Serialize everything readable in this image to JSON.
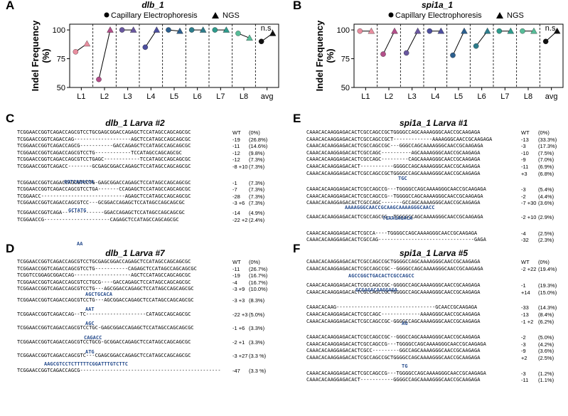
{
  "panels": {
    "A": {
      "label": "A",
      "title": "dlb_1"
    },
    "B": {
      "label": "B",
      "title": "spi1a_1"
    },
    "C": {
      "label": "C",
      "title": "dlb_1 Larva #2"
    },
    "D": {
      "label": "D",
      "title": "dlb_1 Larva #7"
    },
    "E": {
      "label": "E",
      "title": "spi1a_1 Larva #1"
    },
    "F": {
      "label": "F",
      "title": "spi1a_1 Larva #5"
    }
  },
  "legend": {
    "ce": "Capillary Electrophoresis",
    "ngs": "NGS"
  },
  "chart_data": [
    {
      "type": "scatter",
      "title": "dlb_1",
      "ylabel": "Indel Frequency (%)",
      "categories": [
        "L1",
        "L2",
        "L3",
        "L4",
        "L5",
        "L6",
        "L7",
        "L8",
        "avg"
      ],
      "yticks": [
        "50",
        "75",
        "100"
      ],
      "ylim": [
        50,
        105
      ],
      "annotation": "n.s.",
      "series": [
        {
          "name": "Capillary Electrophoresis",
          "values": [
            81,
            57,
            100,
            85,
            100,
            100,
            100,
            97,
            90
          ]
        },
        {
          "name": "NGS",
          "values": [
            88,
            100,
            100,
            100,
            99,
            100,
            100,
            93,
            97
          ]
        }
      ],
      "colors": [
        "#e88e9f",
        "#b34f8a",
        "#6a58a0",
        "#4d4f9e",
        "#2c5f8e",
        "#2e7d8c",
        "#2e9b8c",
        "#58bd99",
        "#111111"
      ]
    },
    {
      "type": "scatter",
      "title": "spi1a_1",
      "ylabel": "Indel Frequency (%)",
      "categories": [
        "L1",
        "L2",
        "L3",
        "L4",
        "L5",
        "L6",
        "L7",
        "L8",
        "avg"
      ],
      "yticks": [
        "50",
        "75",
        "100"
      ],
      "ylim": [
        50,
        105
      ],
      "annotation": "n.s.",
      "series": [
        {
          "name": "Capillary Electrophoresis",
          "values": [
            99,
            79,
            80,
            99,
            78,
            86,
            99,
            99,
            90
          ]
        },
        {
          "name": "NGS",
          "values": [
            99,
            99,
            99,
            99,
            99,
            99,
            99,
            99,
            99
          ]
        }
      ],
      "colors": [
        "#e88e9f",
        "#b34f8a",
        "#6a58a0",
        "#4d4f9e",
        "#2c5f8e",
        "#2e7d8c",
        "#2e9b8c",
        "#58bd99",
        "#111111"
      ]
    }
  ],
  "seq": {
    "C": [
      {
        "s": "TCGGAACCGGTCAGACCAGCGTCCTGCGAGCGGACCAGAGCTCCATAGCCAGCAGCGC",
        "n": "WT",
        "p": "(0%)"
      },
      {
        "s": "TCGGAACCGGTCAGACCAG-------------------AGCTCCATAGCCAGCAGCGC",
        "n": "-19",
        "p": "(26.8%)"
      },
      {
        "s": "TCGGAACCGGTCAGACCAGCG-----------GACCAGAGCTCCATAGCCAGCAGCGC",
        "n": "-11",
        "p": "(14.6%)"
      },
      {
        "s": "TCGGAACCGGTCAGACCAGCGTCCTG------------TCCATAGCCAGCAGCGC",
        "n": "-12",
        "p": "(9.8%)"
      },
      {
        "s": "TCGGAACCGGTCAGACCAGCGTCCTGAGC------------TCCATAGCCAGCAGCGC",
        "n": "-12",
        "p": "(7.3%)"
      },
      {
        "s": "TCGGAACCGGTCAGACC--------GCGAGCGGACCAGAGCTCCATAGCCAGCAGCGC",
        "n": "-8 +10",
        "p": "(7.3%)"
      },
      {
        "s": "TCGGAACCGGTCAGACCAGCGTCCTG-GAGCGGACCAGAGCTCCATAGCCAGCAGCGC",
        "n": "-1",
        "p": "(7.3%)"
      },
      {
        "s": "TCGGAACCGGTCAGACCAGCGTCCTGA-------CCAGAGCTCCATAGCCAGCAGCGC",
        "n": "-7",
        "p": "(7.3%)"
      },
      {
        "s": "TCGGAACC----------------------------AGAGCTCCATAGCCAGCAGCGC",
        "n": "-28",
        "p": "(7.3%)"
      },
      {
        "s": "TCGGAACCGGTCAGACCAGCGTCC---GCGGACCAGAGCTCCATAGCCAGCAGCGC",
        "n": "-3 +6",
        "p": "(7.3%)"
      },
      {
        "s": "TCGGAACCGGTCAGA--------------GGACCAGAGCTCCATAGCCAGCAGCGC",
        "n": "-14",
        "p": "(4.9%)"
      },
      {
        "s": "TCGGAACCG----------------------CAGAGCTCCATAGCCAGCAGCGC",
        "n": "-22 +2",
        "p": "(2.4%)"
      }
    ],
    "Cins": [
      "GGTCAGACCA",
      "GCTATG",
      "AA"
    ],
    "D": [
      {
        "s": "TCGGAACCGGTCAGACCAGCGTCCTGCGAGCGGACCAGAGCTCCATAGCCAGCAGCGC",
        "n": "WT",
        "p": "(0%)"
      },
      {
        "s": "TCGGAACCGGTCAGACCAGCGTCCTG-----------CAGAGCTCCATAGCCAGCAGCGC",
        "n": "-11",
        "p": "(26.7%)"
      },
      {
        "s": "TCGGTCCGGAGCGGACCAG-------------------AGCTCCATAGCCAGCAGCGC",
        "n": "-19",
        "p": "(16.7%)"
      },
      {
        "s": "TCGGAACCGGTCAGACCAGCGTCCTGCG----GACCAGAGCTCCATAGCCAGCAGCGC",
        "n": "-4",
        "p": "(16.7%)"
      },
      {
        "s": "TCGGAACCGGTCAGACCAGCGTCCTG---AGCGGACCAGAGCTCCATAGCCAGCAGCGC",
        "n": "-3 +9",
        "p": "(10.0%)"
      },
      {
        "s": "TCGGAACCGGTCAGACCAGCGTCCTG---AGCGGACCAGAGCTCCATAGCCAGCAGCGC",
        "n": "-3 +3",
        "p": "(8.3%)"
      },
      {
        "s": "TCGGAACCGGTCAGACCAG--TC--------------------CATAGCCAGCAGCGC",
        "n": "-22 +3",
        "p": "(5.0%)"
      },
      {
        "s": "TCGGAACCGGTCAGACCAGCGTCCTGC-GAGCGGACCAGAGCTCCATAGCCAGCAGCGC",
        "n": "-1 +6",
        "p": "(3.3%)"
      },
      {
        "s": "TCGGAACCGGTCAGACCAGCGTCCTGCG-GCGGACCAGAGCTCCATAGCCAGCAGCGC",
        "n": "-2 +1",
        "p": "(3.3%)"
      },
      {
        "s": "TCGGAACCGGTCAGACCAGCGTC---CGAGCGGACCAGAGCTCCATAGCCAGCAGCGC",
        "n": "-3 +27",
        "p": "(3.3 %)"
      },
      {
        "s": "TCGGAACCGGTCAGACCAGCG-----------------------------------------------",
        "n": "-47",
        "p": "(3.3 %)"
      }
    ],
    "Dins": [
      "AGCTGCACA",
      "AAT",
      "AGC",
      "CAGACC",
      "ATG",
      "AAGCGTCCTCTTTTTCGGATTTGTCTTC"
    ],
    "E": [
      {
        "s": "CAAACACAAGGAGACACTCGCCAGCCGCTGGGGCCAGCAAAAGGGCAACCGCAAGAGA",
        "n": "WT",
        "p": "(0%)"
      },
      {
        "s": "CAAACACAAGGAGACACTCGCCAGCCGCT-------------AAAAGGGCAACCGCAAGAGA",
        "n": "-13",
        "p": "(33.3%)"
      },
      {
        "s": "CAAACACAAGGAGACACTCGCCAGCCGC---GGGCCAGCAAAAGGGCAACCGCAAGAGA",
        "n": "-3",
        "p": "(17.3%)"
      },
      {
        "s": "CAAACACAAGGAGACACTCGCCAGC----------AGCAAAAGGGCAACCGCAAGAGA",
        "n": "-10",
        "p": "(7.5%)"
      },
      {
        "s": "CAAACACAAGGAGACACTCGCCAGC---------CAGCAAAAGGGCAACCGCAAGAGA",
        "n": "-9",
        "p": "(7.0%)"
      },
      {
        "s": "CAAACACAAGGAGACACT-----------GGGGCCAGCAAAAGGGCAACCGCAAGAGA",
        "n": "-11",
        "p": "(6.9%)"
      },
      {
        "s": "CAAACACAAGGAGACACTCGCCAGCCGCTGGGGCCAGCAAAAGGGCAACCGCAAGAGA",
        "n": "+3",
        "p": "(6.8%)"
      },
      {
        "s": "CAAACACAAGGAGACACTCGCCAGCCG---TGGGGCCAGCAAAAGGGCAACCGCAAGAGA",
        "n": "-3",
        "p": "(5.4%)"
      },
      {
        "s": "CAAACACAAGGAGACACTCGCCAGCCG--TGGGGCCAGCAAAAGGGCAACCGCAAGAGA",
        "n": "-2",
        "p": "(4.4%)"
      },
      {
        "s": "CAAACACAAGGAGACACTCGCCAGC-------GCCAGCAAAAGGGCAACCGCAAGAGA",
        "n": "-7 +30",
        "p": "(3.6%)"
      },
      {
        "s": "CAAACACAAGGAGACACTCGCCAGCCG--TGGGGCCAGCAAAAGGGCAACCGCAAGAGA",
        "n": "-2 +10",
        "p": "(2.9%)"
      },
      {
        "s": "CAAACACAAGGAGACACTCGCCA----TGGGGCCAGCAAAAGGGCAACCGCAAGAGA",
        "n": "-4",
        "p": "(2.5%)"
      },
      {
        "s": "CAAACACAAGGAGACACTCGCCAG--------------------------------GAGA",
        "n": "-32",
        "p": "(2.3%)"
      }
    ],
    "Eins": [
      "TGC",
      "AAAAGGGCAACCGCAAGCAAAAGGGCAACC",
      "TGAAGAGACA"
    ],
    "F": [
      {
        "s": "CAAACACAAGGAGACACTCGCCAGCCGCTGGGGCCAGCAAAAGGGCAACCGCAAGAGA",
        "n": "WT",
        "p": "(0%)"
      },
      {
        "s": "CAAACACAAGGAGACACTCGCCAGCCGC--GGGGCCAGCAAAAGGGCAACCGCAAGAGA",
        "n": "-2 +22",
        "p": "(19.4%)"
      },
      {
        "s": "CAAACACAAGGAGACACTCGCCAGCCGC-GGGGCCAGCAAAAGGGCAACCGCAAGAGA",
        "n": "-1",
        "p": "(19.3%)"
      },
      {
        "s": "CAAACACAAGGAGACACTCGCCAGCCGCTGGGGCCAGCAAAAGGGCAACCGCAAGAGA",
        "n": "+14",
        "p": "(15.0%)"
      },
      {
        "s": "CAAACACAAG---------------------------------GCAACCGCAAGAGA",
        "n": "-33",
        "p": "(14.3%)"
      },
      {
        "s": "CAAACACAAGGAGACACTCGCCAGC-------------AAAAGGGCAACCGCAAGAGA",
        "n": "-13",
        "p": "(8.4%)"
      },
      {
        "s": "CAAACACAAGGAGACACTCGCCAGCCGC-GGGGCCAGCAAAAGGGCAACCGCAAGAGA",
        "n": "-1 +2",
        "p": "(6.2%)"
      },
      {
        "s": "CAAACACAAGGAGACACTCGCCAGCCGC--GGGCCAGCAAAAGGGCAACCGCAAGAGA",
        "n": "-2",
        "p": "(5.0%)"
      },
      {
        "s": "CAAACACAAGGAGACACTCGCCAGCCG---TGGGGCCAGCAAAAGGGCAACCGCAAGAGA",
        "n": "-3",
        "p": "(4.2%)"
      },
      {
        "s": "CAAACACAAGGAGACACTCGCC---------GGCCAGCAAAAGGGCAACCGCAAGAGA",
        "n": "-9",
        "p": "(3.6%)"
      },
      {
        "s": "CAAACACAAGGAGACACTCGCCAGCCGCTGGGGCCAGCAAAAGGGCAACCGCAAGAGA",
        "n": "+2",
        "p": "(2.5%)"
      },
      {
        "s": "CAAACACAAGGAGACACTCGCCAGCCG---TGGGGCCAGCAAAAGGGCAACCGCAAGAGA",
        "n": "-3",
        "p": "(1.2%)"
      },
      {
        "s": "CAAACACAAGGAGACACT-----------GGGGCCAGCAAAAGGGCAACCGCAAGAGA",
        "n": "-11",
        "p": "(1.1%)"
      }
    ],
    "Fins": [
      "AGCCGGCTGACACTCGCCAGCC",
      "GCGAGACAAGGAGA",
      "AG",
      "TG"
    ]
  }
}
